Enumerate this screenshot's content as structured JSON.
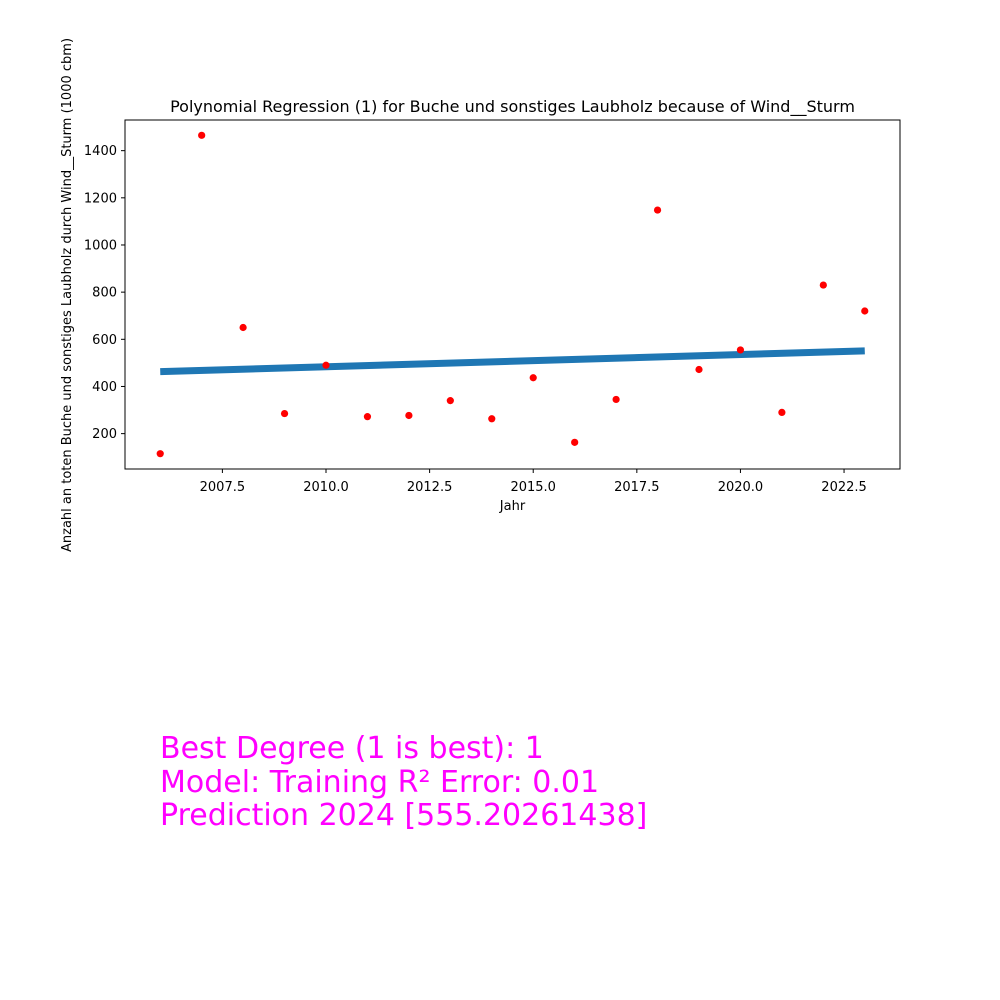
{
  "chart_data": {
    "type": "scatter",
    "title": "Polynomial Regression (1) for Buche und sonstiges Laubholz because of Wind__Sturm",
    "xlabel": "Jahr",
    "ylabel": "Anzahl an toten Buche und sonstiges Laubholz durch Wind__Sturm (1000 cbm)",
    "xlim": [
      2005.15,
      2023.85
    ],
    "ylim": [
      50,
      1530
    ],
    "x_ticks": [
      2007.5,
      2010.0,
      2012.5,
      2015.0,
      2017.5,
      2020.0,
      2022.5
    ],
    "x_tick_labels": [
      "2007.5",
      "2010.0",
      "2012.5",
      "2015.0",
      "2017.5",
      "2020.0",
      "2022.5"
    ],
    "y_ticks": [
      200,
      400,
      600,
      800,
      1000,
      1200,
      1400
    ],
    "y_tick_labels": [
      "200",
      "400",
      "600",
      "800",
      "1000",
      "1200",
      "1400"
    ],
    "grid": false,
    "colors": {
      "points": "#ff0000",
      "fit_line": "#1f77b4",
      "annotation": "#ff00ff"
    },
    "series": [
      {
        "kind": "scatter",
        "x": [
          2006,
          2007,
          2008,
          2009,
          2010,
          2011,
          2012,
          2013,
          2014,
          2015,
          2016,
          2017,
          2018,
          2019,
          2020,
          2021,
          2022,
          2023
        ],
        "y": [
          115,
          1465,
          650,
          285,
          490,
          272,
          277,
          340,
          263,
          437,
          163,
          345,
          1148,
          472,
          555,
          290,
          830,
          720
        ]
      },
      {
        "kind": "line",
        "x": [
          2006,
          2023
        ],
        "y": [
          463,
          551
        ]
      }
    ]
  },
  "annotation": {
    "line1": "Best Degree (1 is best): 1",
    "line2": "Model: Training R² Error: 0.01",
    "line3": "Prediction 2024 [555.20261438]"
  }
}
